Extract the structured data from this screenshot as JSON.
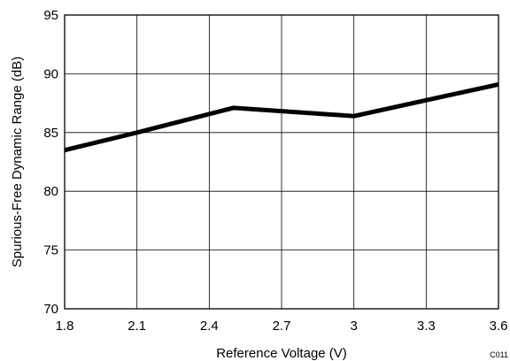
{
  "chart_data": {
    "type": "line",
    "title": "",
    "xlabel": "Reference Voltage (V)",
    "ylabel": "Spurious-Free Dynamic Range (dB)",
    "xlim": [
      1.8,
      3.6
    ],
    "ylim": [
      70,
      95
    ],
    "x_ticks": [
      1.8,
      2.1,
      2.4,
      2.7,
      3.0,
      3.3,
      3.6
    ],
    "x_tick_labels": [
      "1.8",
      "2.1",
      "2.4",
      "2.7",
      "3",
      "3.3",
      "3.6"
    ],
    "y_ticks": [
      70,
      75,
      80,
      85,
      90,
      95
    ],
    "y_tick_labels": [
      "70",
      "75",
      "80",
      "85",
      "90",
      "95"
    ],
    "grid": true,
    "legend": "none",
    "series": [
      {
        "x": [
          1.8,
          2.1,
          2.5,
          3.0,
          3.6
        ],
        "y": [
          83.5,
          85.0,
          87.1,
          86.4,
          89.1
        ],
        "color": "#000000"
      }
    ],
    "annotations": [
      "C011"
    ]
  }
}
